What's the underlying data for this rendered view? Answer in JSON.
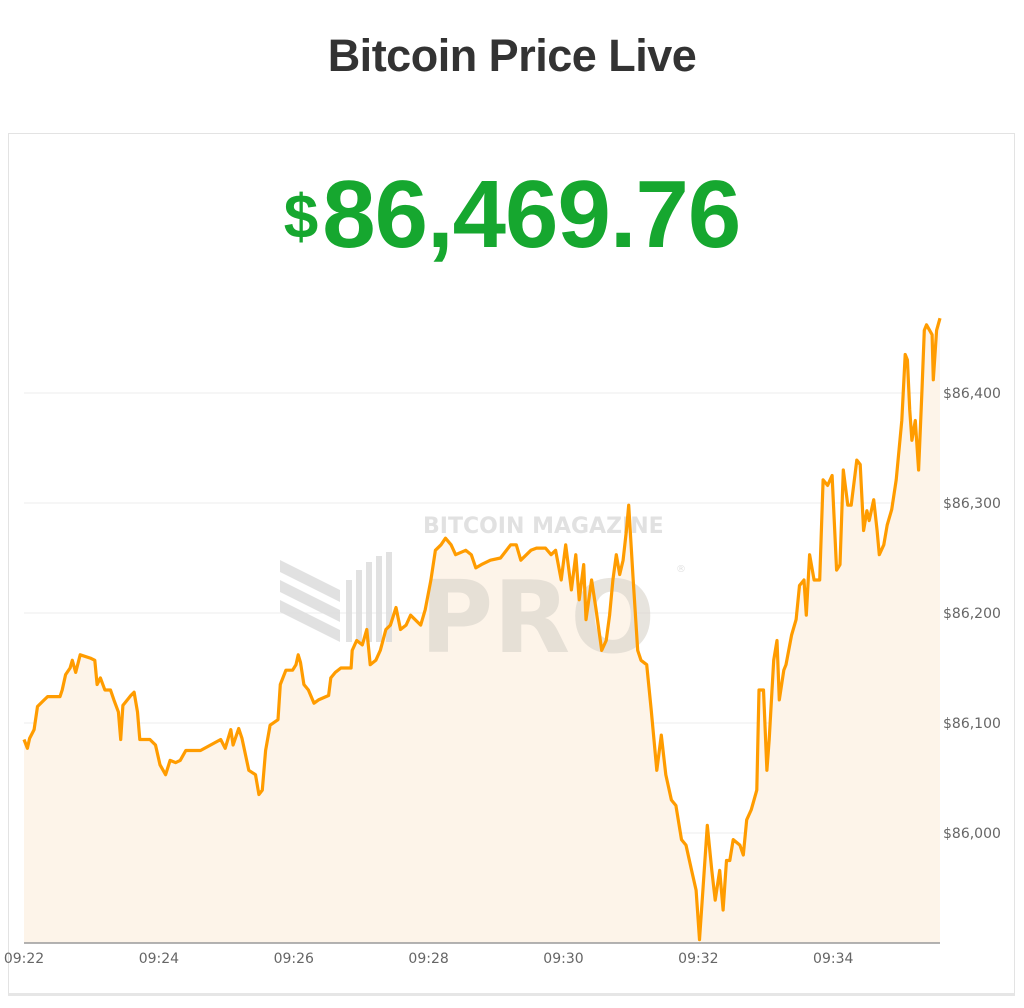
{
  "page": {
    "title": "Bitcoin Price Live"
  },
  "price": {
    "currency_symbol": "$",
    "value": "86,469.76",
    "color": "#16a72f"
  },
  "watermark": {
    "line1": "BITCOIN MAGAZINE",
    "line2": "PRO",
    "mark": "®"
  },
  "chart_data": {
    "type": "area",
    "title": "",
    "xlabel": "",
    "ylabel": "",
    "ylim": [
      85900,
      86500
    ],
    "xlim": [
      "09:22:00",
      "09:35:35"
    ],
    "y_ticks": [
      86000,
      86100,
      86200,
      86300,
      86400
    ],
    "y_tick_labels": [
      "$86,000",
      "$86,100",
      "$86,200",
      "$86,300",
      "$86,400"
    ],
    "y_axis_position": "right",
    "x_ticks": [
      "09:22",
      "09:24",
      "09:26",
      "09:28",
      "09:30",
      "09:32",
      "09:34"
    ],
    "grid": true,
    "legend": "none",
    "line_color": "#ff9c00",
    "fill_color": "#fdf4e9",
    "series": [
      {
        "points": [
          [
            "09:22:00",
            86085
          ],
          [
            "09:22:03",
            86077
          ],
          [
            "09:22:05",
            86086
          ],
          [
            "09:22:09",
            86094
          ],
          [
            "09:22:12",
            86115
          ],
          [
            "09:22:18",
            86121
          ],
          [
            "09:22:21",
            86124
          ],
          [
            "09:22:32",
            86124
          ],
          [
            "09:22:34",
            86130
          ],
          [
            "09:22:37",
            86144
          ],
          [
            "09:22:41",
            86150
          ],
          [
            "09:22:43",
            86157
          ],
          [
            "09:22:46",
            86146
          ],
          [
            "09:22:50",
            86162
          ],
          [
            "09:22:59",
            86159
          ],
          [
            "09:23:03",
            86157
          ],
          [
            "09:23:05",
            86135
          ],
          [
            "09:23:08",
            86141
          ],
          [
            "09:23:12",
            86130
          ],
          [
            "09:23:17",
            86130
          ],
          [
            "09:23:20",
            86121
          ],
          [
            "09:23:24",
            86110
          ],
          [
            "09:23:26",
            86085
          ],
          [
            "09:23:28",
            86116
          ],
          [
            "09:23:35",
            86125
          ],
          [
            "09:23:38",
            86128
          ],
          [
            "09:23:41",
            86110
          ],
          [
            "09:23:43",
            86085
          ],
          [
            "09:23:52",
            86085
          ],
          [
            "09:23:57",
            86080
          ],
          [
            "09:24:01",
            86062
          ],
          [
            "09:24:06",
            86053
          ],
          [
            "09:24:10",
            86066
          ],
          [
            "09:24:15",
            86064
          ],
          [
            "09:24:19",
            86066
          ],
          [
            "09:24:24",
            86075
          ],
          [
            "09:24:37",
            86075
          ],
          [
            "09:24:46",
            86080
          ],
          [
            "09:24:55",
            86085
          ],
          [
            "09:24:59",
            86077
          ],
          [
            "09:25:04",
            86094
          ],
          [
            "09:25:06",
            86080
          ],
          [
            "09:25:11",
            86095
          ],
          [
            "09:25:14",
            86086
          ],
          [
            "09:25:20",
            86057
          ],
          [
            "09:25:26",
            86053
          ],
          [
            "09:25:29",
            86035
          ],
          [
            "09:25:32",
            86039
          ],
          [
            "09:25:35",
            86075
          ],
          [
            "09:25:39",
            86098
          ],
          [
            "09:25:46",
            86103
          ],
          [
            "09:25:48",
            86135
          ],
          [
            "09:25:53",
            86148
          ],
          [
            "09:25:59",
            86148
          ],
          [
            "09:26:02",
            86153
          ],
          [
            "09:26:04",
            86162
          ],
          [
            "09:26:06",
            86155
          ],
          [
            "09:26:09",
            86135
          ],
          [
            "09:26:13",
            86130
          ],
          [
            "09:26:18",
            86118
          ],
          [
            "09:26:22",
            86121
          ],
          [
            "09:26:31",
            86125
          ],
          [
            "09:26:33",
            86141
          ],
          [
            "09:26:37",
            86146
          ],
          [
            "09:26:42",
            86150
          ],
          [
            "09:26:51",
            86150
          ],
          [
            "09:26:52",
            86166
          ],
          [
            "09:26:56",
            86175
          ],
          [
            "09:27:01",
            86171
          ],
          [
            "09:27:05",
            86185
          ],
          [
            "09:27:08",
            86153
          ],
          [
            "09:27:13",
            86157
          ],
          [
            "09:27:17",
            86166
          ],
          [
            "09:27:22",
            86185
          ],
          [
            "09:27:26",
            86189
          ],
          [
            "09:27:31",
            86205
          ],
          [
            "09:27:35",
            86185
          ],
          [
            "09:27:40",
            86189
          ],
          [
            "09:27:44",
            86198
          ],
          [
            "09:27:53",
            86189
          ],
          [
            "09:27:57",
            86203
          ],
          [
            "09:28:02",
            86230
          ],
          [
            "09:28:06",
            86257
          ],
          [
            "09:28:11",
            86262
          ],
          [
            "09:28:15",
            86268
          ],
          [
            "09:28:20",
            86262
          ],
          [
            "09:28:24",
            86253
          ],
          [
            "09:28:33",
            86257
          ],
          [
            "09:28:38",
            86253
          ],
          [
            "09:28:42",
            86241
          ],
          [
            "09:28:47",
            86244
          ],
          [
            "09:28:55",
            86248
          ],
          [
            "09:29:04",
            86250
          ],
          [
            "09:29:13",
            86262
          ],
          [
            "09:29:18",
            86262
          ],
          [
            "09:29:22",
            86248
          ],
          [
            "09:29:31",
            86257
          ],
          [
            "09:29:36",
            86259
          ],
          [
            "09:29:44",
            86259
          ],
          [
            "09:29:49",
            86253
          ],
          [
            "09:29:53",
            86257
          ],
          [
            "09:29:58",
            86230
          ],
          [
            "09:30:02",
            86262
          ],
          [
            "09:30:07",
            86221
          ],
          [
            "09:30:11",
            86253
          ],
          [
            "09:30:14",
            86212
          ],
          [
            "09:30:18",
            86244
          ],
          [
            "09:30:20",
            86194
          ],
          [
            "09:30:25",
            86230
          ],
          [
            "09:30:29",
            86203
          ],
          [
            "09:30:34",
            86166
          ],
          [
            "09:30:38",
            86175
          ],
          [
            "09:30:41",
            86198
          ],
          [
            "09:30:44",
            86230
          ],
          [
            "09:30:47",
            86253
          ],
          [
            "09:30:50",
            86235
          ],
          [
            "09:30:53",
            86248
          ],
          [
            "09:30:56",
            86275
          ],
          [
            "09:30:58",
            86298
          ],
          [
            "09:31:02",
            86230
          ],
          [
            "09:31:06",
            86166
          ],
          [
            "09:31:09",
            86157
          ],
          [
            "09:31:14",
            86153
          ],
          [
            "09:31:18",
            86112
          ],
          [
            "09:31:23",
            86057
          ],
          [
            "09:31:27",
            86089
          ],
          [
            "09:31:31",
            86053
          ],
          [
            "09:31:36",
            86030
          ],
          [
            "09:31:40",
            86025
          ],
          [
            "09:31:45",
            85994
          ],
          [
            "09:31:49",
            85989
          ],
          [
            "09:31:54",
            85966
          ],
          [
            "09:31:58",
            85948
          ],
          [
            "09:32:01",
            85903
          ],
          [
            "09:32:04",
            85948
          ],
          [
            "09:32:08",
            86007
          ],
          [
            "09:32:12",
            85966
          ],
          [
            "09:32:15",
            85939
          ],
          [
            "09:32:19",
            85966
          ],
          [
            "09:32:22",
            85930
          ],
          [
            "09:32:25",
            85975
          ],
          [
            "09:32:28",
            85975
          ],
          [
            "09:32:31",
            85994
          ],
          [
            "09:32:37",
            85989
          ],
          [
            "09:32:40",
            85980
          ],
          [
            "09:32:43",
            86012
          ],
          [
            "09:32:47",
            86021
          ],
          [
            "09:32:52",
            86039
          ],
          [
            "09:32:54",
            86130
          ],
          [
            "09:32:58",
            86130
          ],
          [
            "09:33:01",
            86057
          ],
          [
            "09:33:03",
            86085
          ],
          [
            "09:33:07",
            86157
          ],
          [
            "09:33:10",
            86175
          ],
          [
            "09:33:12",
            86121
          ],
          [
            "09:33:16",
            86148
          ],
          [
            "09:33:18",
            86153
          ],
          [
            "09:33:23",
            86180
          ],
          [
            "09:33:27",
            86194
          ],
          [
            "09:33:30",
            86225
          ],
          [
            "09:33:34",
            86230
          ],
          [
            "09:33:36",
            86198
          ],
          [
            "09:33:39",
            86253
          ],
          [
            "09:33:43",
            86230
          ],
          [
            "09:33:48",
            86230
          ],
          [
            "09:33:51",
            86321
          ],
          [
            "09:33:55",
            86316
          ],
          [
            "09:33:59",
            86325
          ],
          [
            "09:34:03",
            86239
          ],
          [
            "09:34:06",
            86244
          ],
          [
            "09:34:09",
            86330
          ],
          [
            "09:34:13",
            86298
          ],
          [
            "09:34:16",
            86298
          ],
          [
            "09:34:21",
            86339
          ],
          [
            "09:34:24",
            86335
          ],
          [
            "09:34:27",
            86275
          ],
          [
            "09:34:30",
            86293
          ],
          [
            "09:34:32",
            86284
          ],
          [
            "09:34:36",
            86303
          ],
          [
            "09:34:39",
            86275
          ],
          [
            "09:34:41",
            86253
          ],
          [
            "09:34:45",
            86262
          ],
          [
            "09:34:48",
            86280
          ],
          [
            "09:34:52",
            86294
          ],
          [
            "09:34:56",
            86321
          ],
          [
            "09:35:01",
            86375
          ],
          [
            "09:35:04",
            86435
          ],
          [
            "09:35:06",
            86430
          ],
          [
            "09:35:08",
            86385
          ],
          [
            "09:35:10",
            86357
          ],
          [
            "09:35:13",
            86375
          ],
          [
            "09:35:16",
            86330
          ],
          [
            "09:35:19",
            86403
          ],
          [
            "09:35:21",
            86457
          ],
          [
            "09:35:23",
            86462
          ],
          [
            "09:35:28",
            86453
          ],
          [
            "09:35:29",
            86412
          ],
          [
            "09:35:32",
            86457
          ],
          [
            "09:35:35",
            86468
          ]
        ]
      }
    ]
  }
}
